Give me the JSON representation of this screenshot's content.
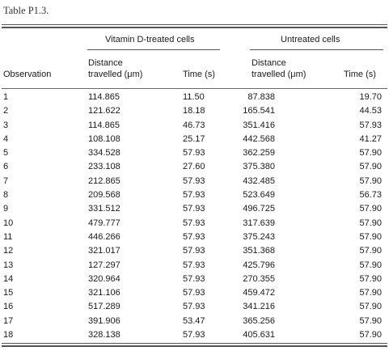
{
  "caption": "Table P1.3.",
  "group_headers": {
    "treated": "Vitamin D-treated cells",
    "untreated": "Untreated cells"
  },
  "column_headers": {
    "observation": "Observation",
    "distance_treated": [
      "Distance",
      "travelled (μm)"
    ],
    "time_treated": "Time (s)",
    "distance_untreated": [
      "Distance",
      "travelled (μm)"
    ],
    "time_untreated": "Time (s)"
  },
  "rows": [
    {
      "obs": "1",
      "d1": "114.865",
      "t1": "11.50",
      "d2": "87.838",
      "t2": "19.70"
    },
    {
      "obs": "2",
      "d1": "121.622",
      "t1": "18.18",
      "d2": "165.541",
      "t2": "44.53"
    },
    {
      "obs": "3",
      "d1": "114.865",
      "t1": "46.73",
      "d2": "351.416",
      "t2": "57.93"
    },
    {
      "obs": "4",
      "d1": "108.108",
      "t1": "25.17",
      "d2": "442.568",
      "t2": "41.27"
    },
    {
      "obs": "5",
      "d1": "334.528",
      "t1": "57.93",
      "d2": "362.259",
      "t2": "57.90"
    },
    {
      "obs": "6",
      "d1": "233.108",
      "t1": "27.60",
      "d2": "375.380",
      "t2": "57.90"
    },
    {
      "obs": "7",
      "d1": "212.865",
      "t1": "57.93",
      "d2": "432.485",
      "t2": "57.90"
    },
    {
      "obs": "8",
      "d1": "209.568",
      "t1": "57.93",
      "d2": "523.649",
      "t2": "56.73"
    },
    {
      "obs": "9",
      "d1": "331.512",
      "t1": "57.93",
      "d2": "496.725",
      "t2": "57.90"
    },
    {
      "obs": "10",
      "d1": "479.777",
      "t1": "57.93",
      "d2": "317.639",
      "t2": "57.90"
    },
    {
      "obs": "11",
      "d1": "446.266",
      "t1": "57.93",
      "d2": "375.243",
      "t2": "57.90"
    },
    {
      "obs": "12",
      "d1": "321.017",
      "t1": "57.93",
      "d2": "351.368",
      "t2": "57.90"
    },
    {
      "obs": "13",
      "d1": "127.297",
      "t1": "57.93",
      "d2": "425.796",
      "t2": "57.90"
    },
    {
      "obs": "14",
      "d1": "320.964",
      "t1": "57.93",
      "d2": "270.355",
      "t2": "57.90"
    },
    {
      "obs": "15",
      "d1": "321.106",
      "t1": "57.93",
      "d2": "459.472",
      "t2": "57.90"
    },
    {
      "obs": "16",
      "d1": "517.289",
      "t1": "57.93",
      "d2": "341.216",
      "t2": "57.90"
    },
    {
      "obs": "17",
      "d1": "391.906",
      "t1": "53.47",
      "d2": "365.256",
      "t2": "57.90"
    },
    {
      "obs": "18",
      "d1": "328.138",
      "t1": "57.93",
      "d2": "405.631",
      "t2": "57.90"
    }
  ]
}
